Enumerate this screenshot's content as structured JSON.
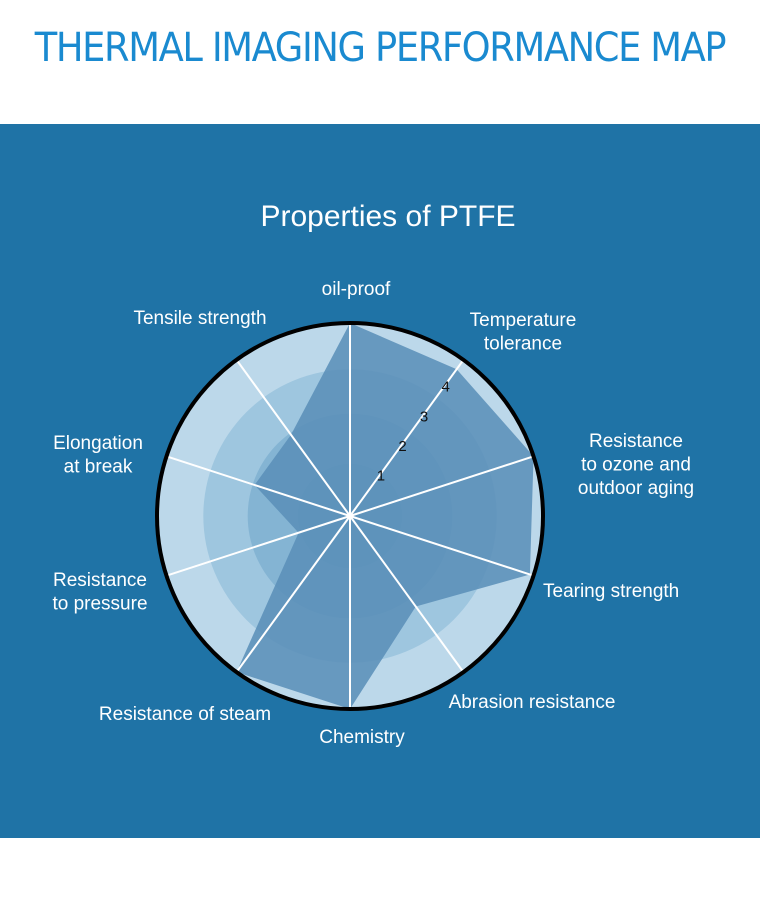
{
  "header": {
    "title": "THERMAL IMAGING PERFORMANCE MAP"
  },
  "colors": {
    "title": "#1a8ad0",
    "panel": "#1f73a6",
    "ring_outer": "#bcd8ea",
    "ring_2": "#9ec6df",
    "ring_3": "#84b4d3",
    "ring_4": "#75a8ca",
    "data_fill": "#5b90b8",
    "spoke": "#ffffff",
    "border": "#000000"
  },
  "chart_data": {
    "type": "radar",
    "title": "Properties of PTFE",
    "axes": [
      {
        "label": [
          "oil-proof"
        ],
        "value": 5
      },
      {
        "label": [
          "Temperature",
          "tolerance"
        ],
        "value": 4.7
      },
      {
        "label": [
          "Resistance",
          "to ozone and",
          "outdoor aging"
        ],
        "value": 5
      },
      {
        "label": [
          "Tearing strength"
        ],
        "value": 4.9
      },
      {
        "label": [
          "Abrasion resistance"
        ],
        "value": 2.9
      },
      {
        "label": [
          "Chemistry"
        ],
        "value": 5
      },
      {
        "label": [
          "Resistance of steam"
        ],
        "value": 5
      },
      {
        "label": [
          "Resistance",
          "to pressure"
        ],
        "value": 1.4
      },
      {
        "label": [
          "Elongation",
          "at break"
        ],
        "value": 2.6
      },
      {
        "label": [
          "Tensile strength"
        ],
        "value": 2.6
      }
    ],
    "scale": {
      "min": 0,
      "max": 5
    },
    "ring_labels": [
      "1",
      "2",
      "3",
      "4"
    ]
  }
}
